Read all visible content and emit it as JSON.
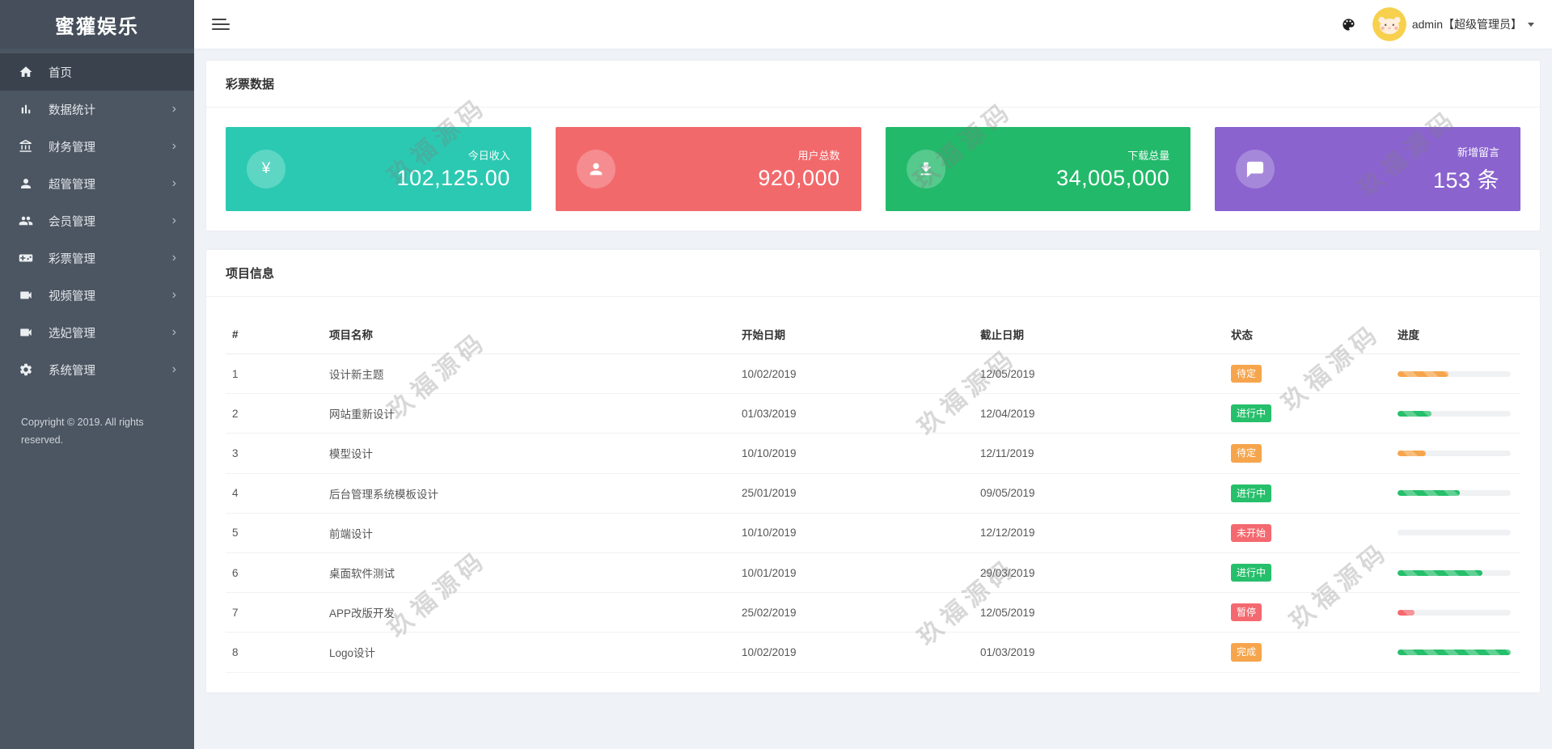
{
  "app": {
    "title": "蜜獾娱乐"
  },
  "topbar": {
    "username": "admin【超级管理员】"
  },
  "sidebar": {
    "items": [
      {
        "label": "首页",
        "icon": "home",
        "active": true,
        "has_children": false
      },
      {
        "label": "数据统计",
        "icon": "bar-chart",
        "active": false,
        "has_children": true
      },
      {
        "label": "财务管理",
        "icon": "bank",
        "active": false,
        "has_children": true
      },
      {
        "label": "超管管理",
        "icon": "person",
        "active": false,
        "has_children": true
      },
      {
        "label": "会员管理",
        "icon": "people",
        "active": false,
        "has_children": true
      },
      {
        "label": "彩票管理",
        "icon": "gamepad",
        "active": false,
        "has_children": true
      },
      {
        "label": "视频管理",
        "icon": "video",
        "active": false,
        "has_children": true
      },
      {
        "label": "选妃管理",
        "icon": "video",
        "active": false,
        "has_children": true
      },
      {
        "label": "系统管理",
        "icon": "gear",
        "active": false,
        "has_children": true
      }
    ],
    "copyright": "Copyright © 2019. All rights reserved."
  },
  "lottery_section": {
    "title": "彩票数据",
    "stats": [
      {
        "label": "今日收入",
        "value": "102,125.00",
        "color": "#2cc9b2",
        "icon": "yen"
      },
      {
        "label": "用户总数",
        "value": "920,000",
        "color": "#f2696c",
        "icon": "person"
      },
      {
        "label": "下载总量",
        "value": "34,005,000",
        "color": "#22b96a",
        "icon": "download"
      },
      {
        "label": "新增留言",
        "value": "153 条",
        "color": "#8a63cf",
        "icon": "chat"
      }
    ]
  },
  "projects_section": {
    "title": "项目信息",
    "columns": [
      "#",
      "项目名称",
      "开始日期",
      "截止日期",
      "状态",
      "进度"
    ],
    "rows": [
      {
        "id": "1",
        "name": "设计新主题",
        "start": "10/02/2019",
        "end": "12/05/2019",
        "status": "待定",
        "status_color": "orange",
        "progress": 45,
        "progress_color": "orange"
      },
      {
        "id": "2",
        "name": "网站重新设计",
        "start": "01/03/2019",
        "end": "12/04/2019",
        "status": "进行中",
        "status_color": "green",
        "progress": 30,
        "progress_color": "green"
      },
      {
        "id": "3",
        "name": "模型设计",
        "start": "10/10/2019",
        "end": "12/11/2019",
        "status": "待定",
        "status_color": "orange",
        "progress": 25,
        "progress_color": "orange"
      },
      {
        "id": "4",
        "name": "后台管理系统模板设计",
        "start": "25/01/2019",
        "end": "09/05/2019",
        "status": "进行中",
        "status_color": "green",
        "progress": 55,
        "progress_color": "green"
      },
      {
        "id": "5",
        "name": "前端设计",
        "start": "10/10/2019",
        "end": "12/12/2019",
        "status": "未开始",
        "status_color": "red",
        "progress": 0,
        "progress_color": "green"
      },
      {
        "id": "6",
        "name": "桌面软件测试",
        "start": "10/01/2019",
        "end": "29/03/2019",
        "status": "进行中",
        "status_color": "green",
        "progress": 75,
        "progress_color": "green"
      },
      {
        "id": "7",
        "name": "APP改版开发",
        "start": "25/02/2019",
        "end": "12/05/2019",
        "status": "暂停",
        "status_color": "red",
        "progress": 15,
        "progress_color": "red"
      },
      {
        "id": "8",
        "name": "Logo设计",
        "start": "10/02/2019",
        "end": "01/03/2019",
        "status": "完成",
        "status_color": "orange",
        "progress": 100,
        "progress_color": "green"
      }
    ]
  },
  "status_colors": {
    "orange": "#f6a54c",
    "green": "#26bf6b",
    "red": "#f4696f"
  },
  "watermark": {
    "text": "玖福源码"
  }
}
